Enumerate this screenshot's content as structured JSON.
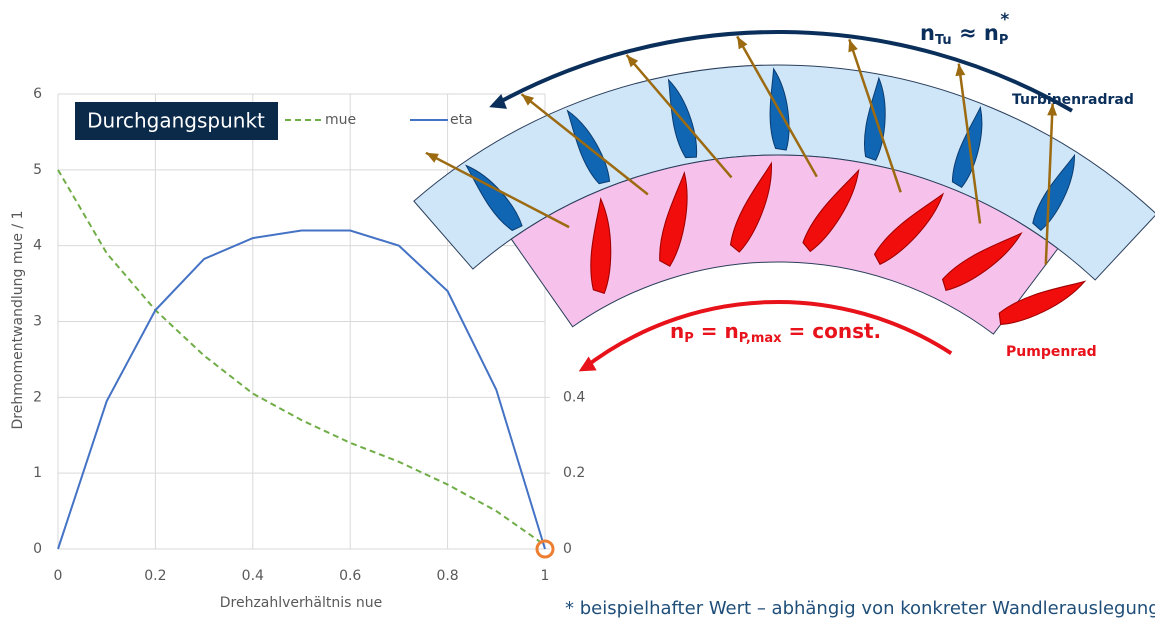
{
  "chart_data": {
    "type": "line",
    "annotation": "Durchgangspunkt",
    "xlabel": "Drehzahlverhältnis nue",
    "ylabel": "Drehmomentwandlung mue / 1",
    "x": [
      0,
      0.1,
      0.2,
      0.3,
      0.4,
      0.5,
      0.6,
      0.7,
      0.8,
      0.9,
      1
    ],
    "series": [
      {
        "name": "mue",
        "color": "#70ad47",
        "linestyle": "dashed",
        "values": [
          5.0,
          3.9,
          3.15,
          2.55,
          2.05,
          1.7,
          1.4,
          1.15,
          0.85,
          0.5,
          0.05
        ]
      },
      {
        "name": "eta",
        "color": "#4472c4",
        "linestyle": "solid",
        "axis": "y2",
        "values": [
          0,
          0.39,
          0.63,
          0.765,
          0.82,
          0.84,
          0.84,
          0.8,
          0.68,
          0.42,
          0
        ]
      }
    ],
    "xlim": [
      0,
      1
    ],
    "xticks": [
      0,
      0.2,
      0.4,
      0.6,
      0.8,
      1
    ],
    "ylim": [
      0,
      6
    ],
    "yticks": [
      0,
      1,
      2,
      3,
      4,
      5,
      6
    ],
    "y2lim": [
      0,
      1.2
    ],
    "y2ticks": [
      0,
      0.2,
      0.4
    ],
    "grid": true,
    "highlight": {
      "x": 1,
      "y": 0,
      "color": "#ed7d31"
    }
  },
  "diagram": {
    "turbine_speed": {
      "lhs": {
        "symbol": "n",
        "subscript": "Tu"
      },
      "relation": "≈",
      "rhs": {
        "symbol": "n",
        "subscript": "P",
        "superscript": "*"
      }
    },
    "turbine_label": "Turbinenradrad",
    "pump_speed": {
      "lhs": {
        "symbol": "n",
        "subscript": "P"
      },
      "relation": "=",
      "mid": {
        "symbol": "n",
        "subscript": "P,max"
      },
      "rhs": "const."
    },
    "pump_label": "Pumpenrad",
    "footnote": "* beispielhafter Wert – abhängig von konkreter Wandlerauslegung"
  }
}
